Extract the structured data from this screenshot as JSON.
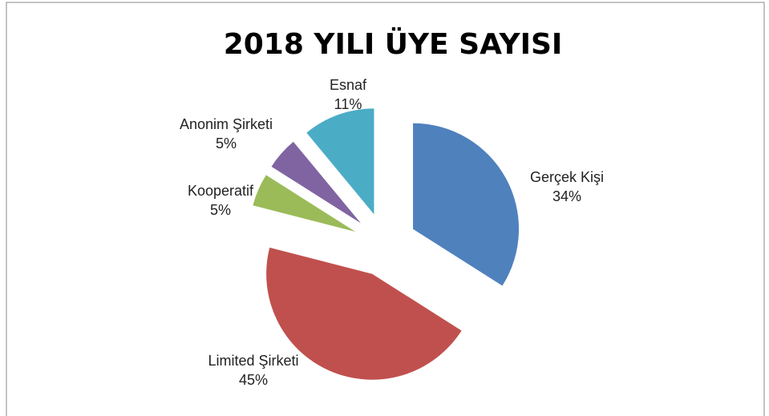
{
  "chart_data": {
    "type": "pie",
    "title": "2018 YILI ÜYE SAYISI",
    "categories": [
      "Gerçek Kişi",
      "Limited Şirketi",
      "Kooperatif",
      "Anonim Şirketi",
      "Esnaf"
    ],
    "values": [
      34,
      45,
      5,
      5,
      11
    ],
    "value_labels": [
      "34%",
      "45%",
      "5%",
      "5%",
      "11%"
    ],
    "colors": [
      "#4f81bd",
      "#c0504d",
      "#9bbb59",
      "#8064a2",
      "#4bacc6"
    ]
  }
}
